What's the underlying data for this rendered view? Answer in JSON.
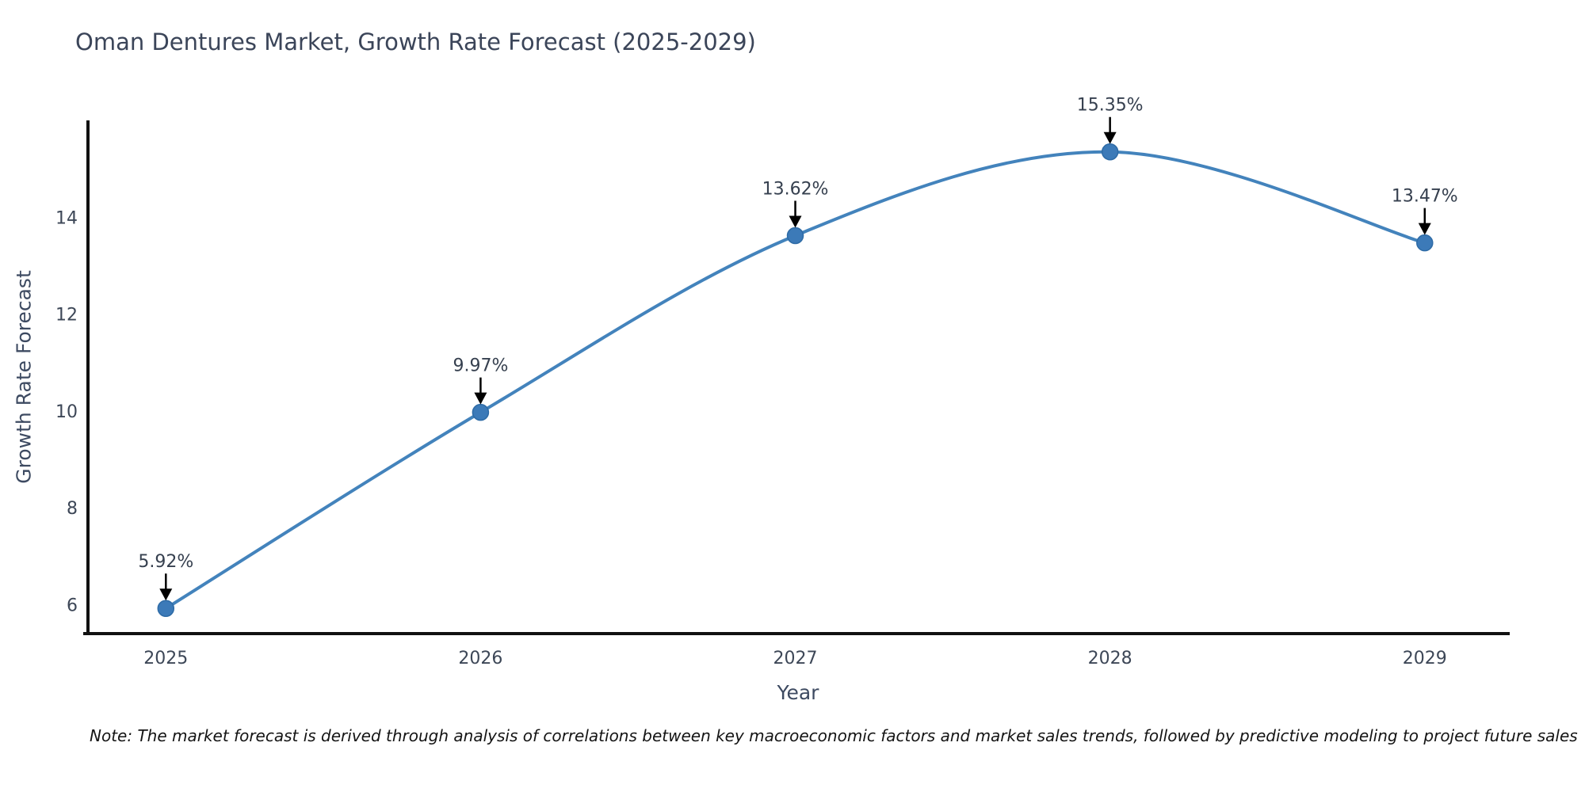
{
  "figure": {
    "title": "Oman Dentures Market, Growth Rate Forecast (2025-2029)",
    "xlabel": "Year",
    "ylabel": "Growth Rate Forecast",
    "note": "Note: The market forecast is derived through analysis of correlations between key macroeconomic factors and market sales trends, followed by predictive modeling to project future sales"
  },
  "chart_data": {
    "type": "line",
    "title": "Oman Dentures Market, Growth Rate Forecast (2025-2029)",
    "xlabel": "Year",
    "ylabel": "Growth Rate Forecast",
    "x": [
      2025,
      2026,
      2027,
      2028,
      2029
    ],
    "x_tick_labels": [
      "2025",
      "2026",
      "2027",
      "2028",
      "2029"
    ],
    "series": [
      {
        "name": "Growth Rate Forecast",
        "values": [
          5.92,
          9.97,
          13.62,
          15.35,
          13.47
        ]
      }
    ],
    "point_labels": [
      "5.92%",
      "9.97%",
      "13.62%",
      "15.35%",
      "13.47%"
    ],
    "yticks": [
      6,
      8,
      10,
      12,
      14
    ],
    "ylim": [
      5.4,
      16.0
    ],
    "xlim": [
      2024.75,
      2029.27
    ],
    "grid": false,
    "legend": false,
    "smooth": true,
    "line_color": "#4383bc",
    "marker_color": "#3c7ab8",
    "marker_edge_color": "#2e6ba6",
    "axis_color": "#111111",
    "tick_label_color": "#3d4757",
    "title_color": "#3b4559",
    "annotation_text_color": "#36404f",
    "annotation_arrow_color": "#000000"
  }
}
